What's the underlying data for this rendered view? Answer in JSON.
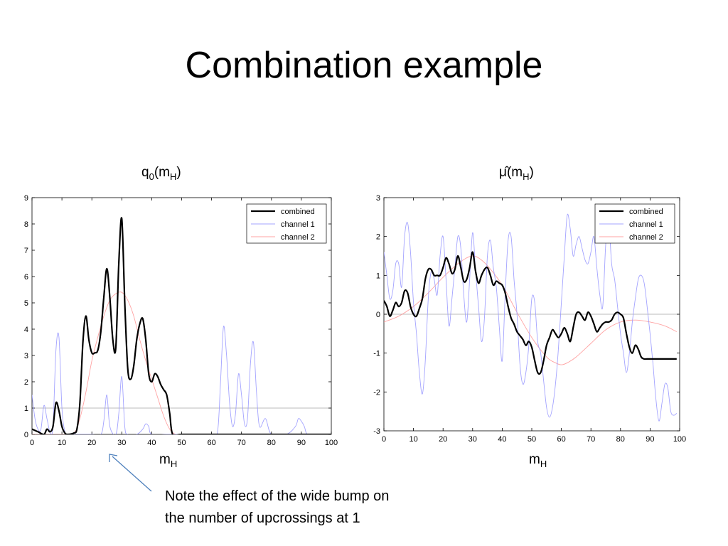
{
  "slide": {
    "title": "Combination example",
    "note_line1": "Note the effect of the wide bump on",
    "note_line2": "the number of upcrossings at 1"
  },
  "colors": {
    "combined": "#000000",
    "channel1": "#9999ff",
    "channel2": "#ff9999",
    "reference_line": "#bbbbbb"
  },
  "chart_data": [
    {
      "type": "line",
      "title_main": "q",
      "title_sub0": "0",
      "title_mid": "(m",
      "title_sub1": "H",
      "title_end": ")",
      "xlabel_main": "m",
      "xlabel_sub": "H",
      "xlim": [
        0,
        100
      ],
      "ylim": [
        0,
        9
      ],
      "xticks": [
        0,
        10,
        20,
        30,
        40,
        50,
        60,
        70,
        80,
        90,
        100
      ],
      "yticks": [
        0,
        1,
        2,
        3,
        4,
        5,
        6,
        7,
        8,
        9
      ],
      "reference_line": 1,
      "legend": [
        "combined",
        "channel 1",
        "channel 2"
      ],
      "legend_position": "top-right",
      "series": [
        {
          "name": "combined",
          "x": [
            0,
            2,
            4,
            5,
            6,
            7,
            8,
            9,
            10,
            11,
            12,
            14,
            15,
            16,
            17,
            18,
            19,
            20,
            21,
            22,
            23,
            24,
            25,
            26,
            27,
            28,
            29,
            30,
            31,
            32,
            33,
            34,
            35,
            36,
            37,
            38,
            39,
            40,
            41,
            42,
            43,
            44,
            45,
            46,
            47,
            50,
            60,
            70,
            80,
            90,
            100
          ],
          "y": [
            0.2,
            0.1,
            0,
            0.2,
            0.1,
            0.3,
            1.2,
            0.9,
            0.3,
            0.05,
            0,
            0.05,
            0.2,
            1.2,
            3.5,
            4.5,
            3.6,
            3.1,
            3.1,
            3.2,
            3.9,
            5.2,
            6.3,
            5.2,
            3.6,
            3.3,
            6.5,
            8.2,
            5.0,
            2.5,
            2.1,
            2.6,
            3.6,
            4.2,
            4.4,
            3.6,
            2.3,
            2.0,
            2.3,
            2.2,
            1.9,
            1.7,
            1.5,
            0.8,
            0,
            0,
            0,
            0,
            0,
            0,
            0
          ]
        },
        {
          "name": "channel 1",
          "x": [
            0,
            1,
            2,
            3,
            4,
            5,
            6,
            7,
            8,
            9,
            10,
            11,
            12,
            15,
            20,
            23,
            24,
            25,
            26,
            28,
            29,
            30,
            31,
            32,
            35,
            37,
            38,
            39,
            40,
            45,
            50,
            60,
            62,
            63,
            64,
            65,
            66,
            67,
            68,
            69,
            70,
            71,
            72,
            73,
            74,
            75,
            76,
            78,
            80,
            85,
            88,
            89,
            90,
            91,
            92,
            95,
            100
          ],
          "y": [
            1.5,
            0.6,
            0.2,
            0.2,
            1.1,
            0.6,
            0.1,
            0.3,
            3.2,
            3.7,
            1.0,
            0.1,
            0,
            0,
            0,
            0,
            0.5,
            1.5,
            0.3,
            0,
            0.8,
            2.2,
            0.3,
            0,
            0,
            0.2,
            0.4,
            0.3,
            0,
            0,
            0,
            0,
            0.1,
            2.0,
            4.1,
            3.0,
            1.2,
            0.3,
            0.8,
            2.3,
            1.5,
            0.4,
            0.6,
            2.7,
            3.5,
            1.6,
            0.3,
            0.6,
            0,
            0,
            0.3,
            0.6,
            0.5,
            0.3,
            0,
            0,
            0
          ]
        },
        {
          "name": "channel 2",
          "x": [
            0,
            10,
            14,
            16,
            18,
            20,
            22,
            24,
            26,
            28,
            30,
            32,
            34,
            36,
            38,
            40,
            42,
            44,
            46,
            48,
            50,
            60,
            100
          ],
          "y": [
            0,
            0,
            0.05,
            0.6,
            1.6,
            2.8,
            3.7,
            4.5,
            5.1,
            5.35,
            5.4,
            5.1,
            4.5,
            3.6,
            2.8,
            2.1,
            1.4,
            0.7,
            0.2,
            0,
            0,
            0,
            0
          ]
        }
      ]
    },
    {
      "type": "line",
      "title_main": "μ̂",
      "title_mid": "(m",
      "title_sub1": "H",
      "title_end": ")",
      "xlabel_main": "m",
      "xlabel_sub": "H",
      "xlim": [
        0,
        100
      ],
      "ylim": [
        -3,
        3
      ],
      "xticks": [
        0,
        10,
        20,
        30,
        40,
        50,
        60,
        70,
        80,
        90,
        100
      ],
      "yticks": [
        -3,
        -2,
        -1,
        0,
        1,
        2,
        3
      ],
      "reference_line": 0,
      "legend": [
        "combined",
        "channel 1",
        "channel 2"
      ],
      "legend_position": "top-right",
      "series": [
        {
          "name": "combined",
          "x": [
            0,
            1,
            2,
            3,
            4,
            5,
            6,
            7,
            8,
            9,
            10,
            11,
            12,
            13,
            14,
            15,
            16,
            17,
            18,
            19,
            20,
            21,
            22,
            23,
            24,
            25,
            26,
            27,
            28,
            29,
            30,
            31,
            32,
            33,
            34,
            35,
            36,
            37,
            38,
            39,
            40,
            41,
            42,
            43,
            44,
            45,
            46,
            47,
            48,
            49,
            50,
            51,
            52,
            53,
            54,
            55,
            56,
            57,
            58,
            59,
            60,
            61,
            62,
            63,
            64,
            65,
            66,
            67,
            68,
            69,
            70,
            71,
            72,
            73,
            74,
            75,
            76,
            77,
            78,
            79,
            80,
            81,
            82,
            83,
            84,
            85,
            86,
            87,
            88,
            89,
            90,
            91,
            92,
            93,
            94,
            95,
            96,
            97,
            98,
            99
          ],
          "y": [
            0.35,
            0.2,
            -0.05,
            0.1,
            0.3,
            0.2,
            0.3,
            0.6,
            0.55,
            0.2,
            0.0,
            -0.05,
            0.15,
            0.4,
            0.9,
            1.15,
            1.15,
            1.0,
            1.0,
            1.0,
            1.2,
            1.45,
            1.3,
            1.05,
            1.15,
            1.5,
            1.2,
            0.85,
            0.9,
            1.2,
            1.6,
            1.1,
            0.8,
            1.0,
            1.15,
            1.2,
            1.0,
            0.75,
            0.85,
            0.8,
            0.75,
            0.55,
            0.2,
            -0.1,
            -0.25,
            -0.45,
            -0.55,
            -0.65,
            -0.8,
            -0.7,
            -0.85,
            -1.2,
            -1.5,
            -1.5,
            -1.2,
            -0.8,
            -0.6,
            -0.4,
            -0.5,
            -0.6,
            -0.5,
            -0.35,
            -0.5,
            -0.7,
            -0.35,
            0.0,
            0.05,
            -0.05,
            -0.15,
            0.05,
            -0.05,
            -0.25,
            -0.45,
            -0.35,
            -0.25,
            -0.2,
            -0.2,
            -0.15,
            0.0,
            0.05,
            0.0,
            -0.1,
            -0.5,
            -0.85,
            -1.0,
            -0.8,
            -0.9,
            -1.1,
            -1.15,
            -1.15,
            -1.15,
            -1.15,
            -1.15,
            -1.15,
            -1.15,
            -1.15,
            -1.15,
            -1.15,
            -1.15,
            -1.15
          ]
        },
        {
          "name": "channel 1",
          "x": [
            0,
            1,
            2,
            3,
            4,
            5,
            6,
            7,
            8,
            9,
            10,
            11,
            12,
            13,
            14,
            15,
            16,
            17,
            18,
            19,
            20,
            21,
            22,
            23,
            24,
            25,
            26,
            27,
            28,
            29,
            30,
            31,
            32,
            33,
            34,
            35,
            36,
            37,
            38,
            39,
            40,
            41,
            42,
            43,
            44,
            45,
            46,
            47,
            48,
            49,
            50,
            51,
            52,
            53,
            54,
            55,
            56,
            57,
            58,
            59,
            60,
            61,
            62,
            63,
            64,
            65,
            66,
            67,
            68,
            69,
            70,
            71,
            72,
            73,
            74,
            75,
            76,
            77,
            78,
            79,
            80,
            81,
            82,
            83,
            84,
            85,
            86,
            87,
            88,
            89,
            90,
            91,
            92,
            93,
            94,
            95,
            96,
            97,
            98,
            99
          ],
          "y": [
            1.6,
            1.0,
            0.4,
            0.6,
            1.3,
            1.3,
            0.7,
            2.0,
            2.35,
            1.6,
            0.3,
            -0.5,
            -1.5,
            -2.05,
            -1.2,
            0.4,
            1.1,
            0.9,
            0.5,
            1.5,
            2.0,
            0.9,
            -0.3,
            0.4,
            1.2,
            2.0,
            1.7,
            0.5,
            -0.2,
            0.9,
            2.1,
            1.1,
            0.2,
            -0.7,
            -0.1,
            1.5,
            1.9,
            1.2,
            0.7,
            -0.3,
            -1.2,
            0.5,
            1.9,
            2.0,
            0.9,
            0.0,
            -1.3,
            -1.8,
            -1.5,
            -0.8,
            0.4,
            0.3,
            -0.7,
            -1.0,
            -1.7,
            -2.4,
            -2.65,
            -2.4,
            -1.8,
            -0.9,
            0.3,
            1.5,
            2.55,
            2.2,
            1.5,
            1.8,
            2.0,
            1.7,
            1.4,
            1.3,
            1.6,
            2.0,
            1.2,
            0.5,
            0.2,
            1.8,
            2.4,
            1.3,
            0.9,
            0.2,
            -0.5,
            -1.0,
            -1.5,
            -1.0,
            -0.2,
            0.4,
            0.9,
            1.0,
            0.8,
            0.2,
            -0.5,
            -1.3,
            -2.2,
            -2.75,
            -2.3,
            -1.8,
            -1.9,
            -2.5,
            -2.6,
            -2.55
          ]
        },
        {
          "name": "channel 2",
          "x": [
            0,
            5,
            10,
            15,
            20,
            25,
            28,
            30,
            32,
            35,
            40,
            45,
            50,
            55,
            58,
            60,
            62,
            65,
            70,
            75,
            80,
            85,
            90,
            95,
            99
          ],
          "y": [
            -0.2,
            -0.05,
            0.2,
            0.55,
            0.95,
            1.3,
            1.45,
            1.5,
            1.45,
            1.25,
            0.75,
            0.05,
            -0.6,
            -1.1,
            -1.25,
            -1.3,
            -1.25,
            -1.1,
            -0.75,
            -0.4,
            -0.2,
            -0.15,
            -0.2,
            -0.3,
            -0.45
          ]
        }
      ]
    }
  ]
}
